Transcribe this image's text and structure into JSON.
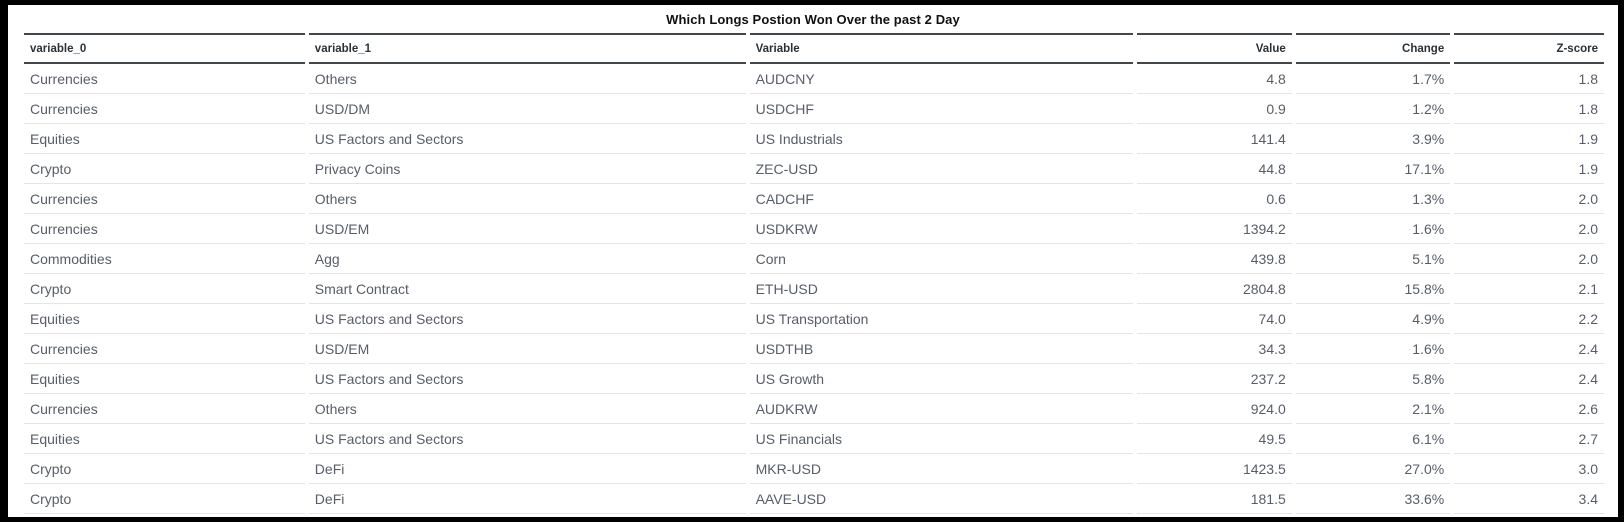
{
  "title": "Which Longs Postion Won Over the past 2 Day",
  "chart_data": {
    "type": "table",
    "title": "Which Longs Postion Won Over the past 2 Day",
    "columns": [
      "variable_0",
      "variable_1",
      "Variable",
      "Value",
      "Change",
      "Z-score"
    ],
    "rows": [
      [
        "Currencies",
        "Others",
        "AUDCNY",
        "4.8",
        "1.7%",
        "1.8"
      ],
      [
        "Currencies",
        "USD/DM",
        "USDCHF",
        "0.9",
        "1.2%",
        "1.8"
      ],
      [
        "Equities",
        "US Factors and Sectors",
        "US Industrials",
        "141.4",
        "3.9%",
        "1.9"
      ],
      [
        "Crypto",
        "Privacy Coins",
        "ZEC-USD",
        "44.8",
        "17.1%",
        "1.9"
      ],
      [
        "Currencies",
        "Others",
        "CADCHF",
        "0.6",
        "1.3%",
        "2.0"
      ],
      [
        "Currencies",
        "USD/EM",
        "USDKRW",
        "1394.2",
        "1.6%",
        "2.0"
      ],
      [
        "Commodities",
        "Agg",
        "Corn",
        "439.8",
        "5.1%",
        "2.0"
      ],
      [
        "Crypto",
        "Smart Contract",
        "ETH-USD",
        "2804.8",
        "15.8%",
        "2.1"
      ],
      [
        "Equities",
        "US Factors and Sectors",
        "US Transportation",
        "74.0",
        "4.9%",
        "2.2"
      ],
      [
        "Currencies",
        "USD/EM",
        "USDTHB",
        "34.3",
        "1.6%",
        "2.4"
      ],
      [
        "Equities",
        "US Factors and Sectors",
        "US Growth",
        "237.2",
        "5.8%",
        "2.4"
      ],
      [
        "Currencies",
        "Others",
        "AUDKRW",
        "924.0",
        "2.1%",
        "2.6"
      ],
      [
        "Equities",
        "US Factors and Sectors",
        "US Financials",
        "49.5",
        "6.1%",
        "2.7"
      ],
      [
        "Crypto",
        "DeFi",
        "MKR-USD",
        "1423.5",
        "27.0%",
        "3.0"
      ],
      [
        "Crypto",
        "DeFi",
        "AAVE-USD",
        "181.5",
        "33.6%",
        "3.4"
      ]
    ],
    "layout": {
      "align": [
        "left",
        "left",
        "left",
        "right",
        "right",
        "right"
      ],
      "grid": "horizontal-rules-only"
    }
  },
  "colors": {
    "background": "#ffffff",
    "frame_border": "#000000",
    "header_rule": "#42474b",
    "row_rule": "#e3e5e7",
    "header_text": "#2e3134",
    "cell_text": "#575e69",
    "title_text": "#101010"
  }
}
